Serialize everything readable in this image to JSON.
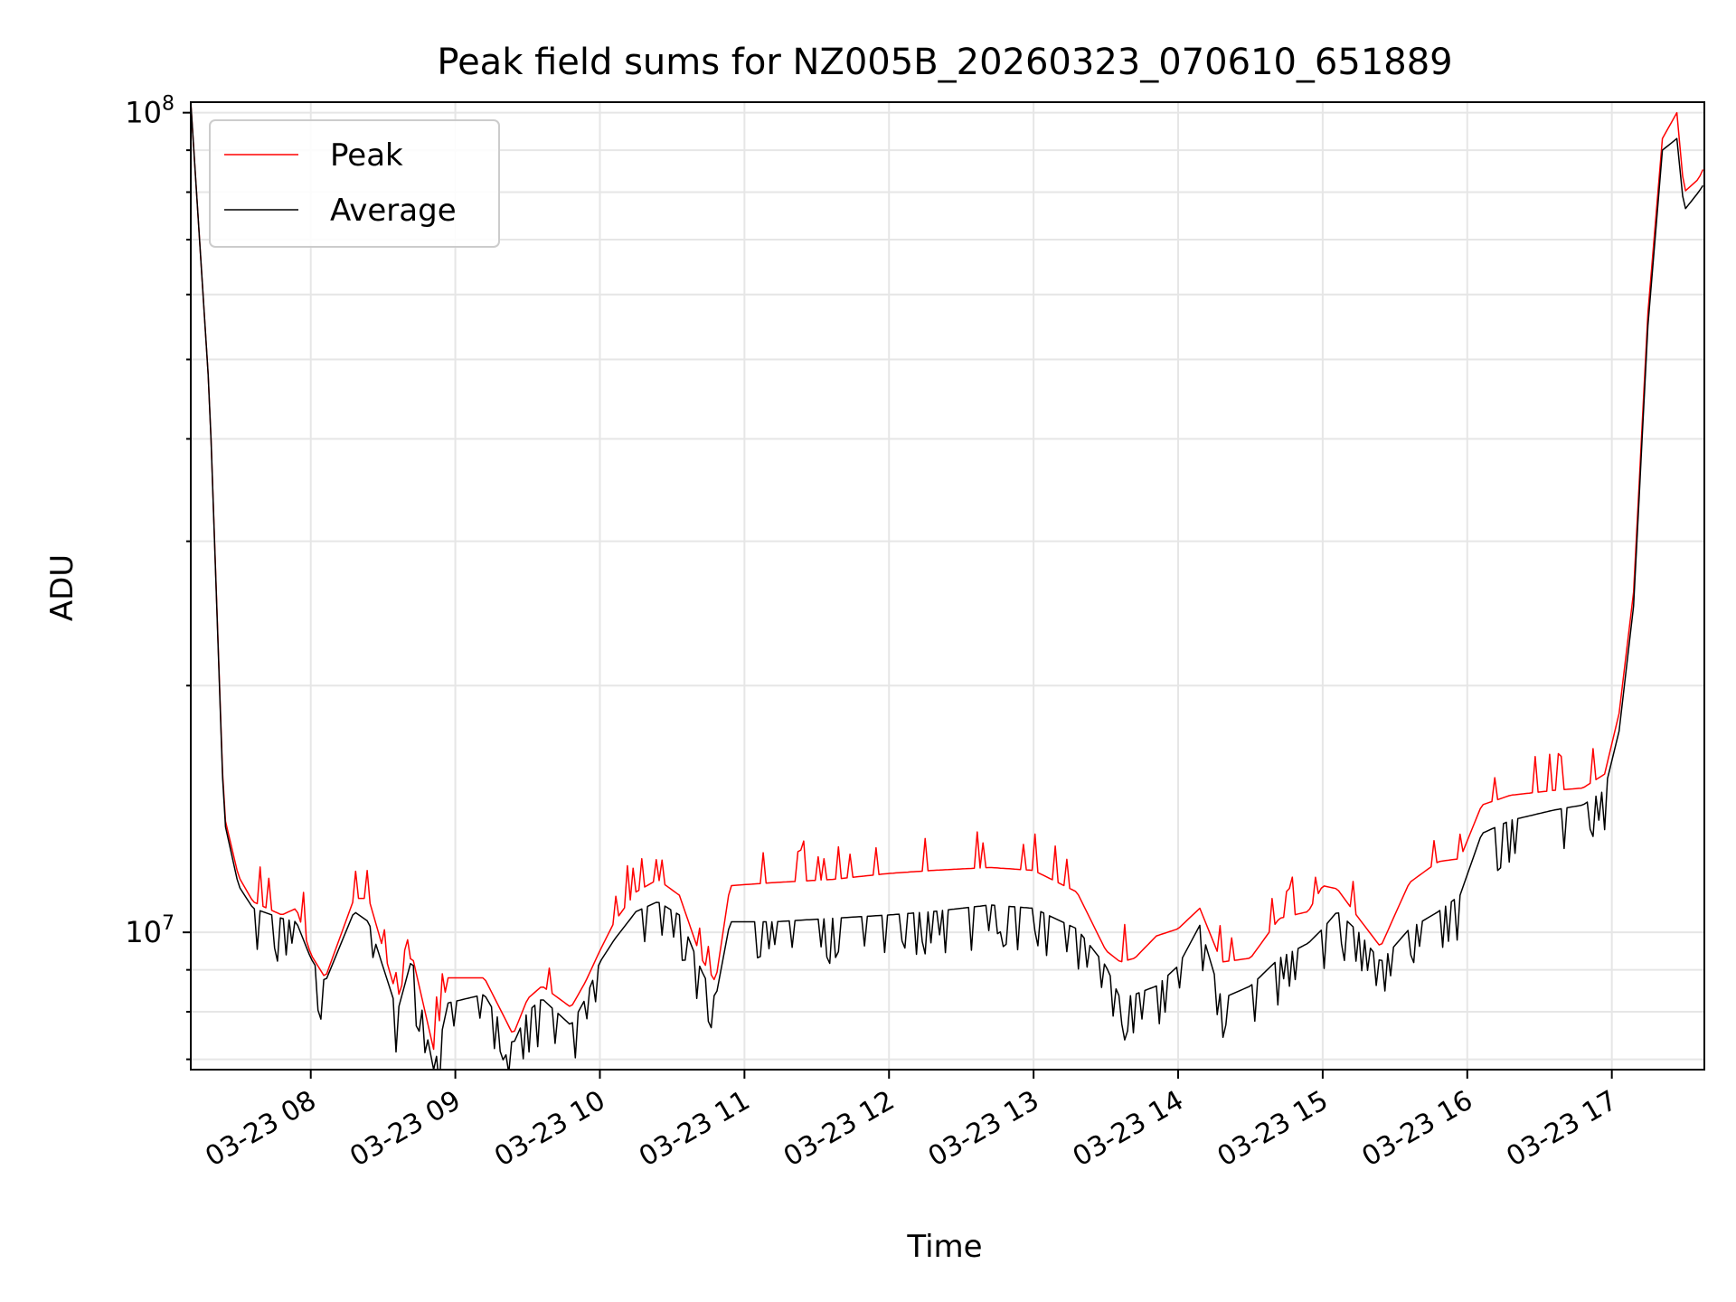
{
  "chart_data": {
    "type": "line",
    "title": "Peak field sums for NZ005B_20260323_070610_651889",
    "xlabel": "Time",
    "ylabel": "ADU",
    "yscale": "log",
    "ylim": [
      6800000,
      103000000
    ],
    "xlim_hours": [
      7.17,
      17.64
    ],
    "x_tick_hours": [
      8,
      9,
      10,
      11,
      12,
      13,
      14,
      15,
      16,
      17
    ],
    "x_tick_labels": [
      "03-23 08",
      "03-23 09",
      "03-23 10",
      "03-23 11",
      "03-23 12",
      "03-23 13",
      "03-23 14",
      "03-23 15",
      "03-23 16",
      "03-23 17"
    ],
    "y_tick_labels": [
      {
        "value": 10000000,
        "base": "10",
        "exp": "7"
      },
      {
        "value": 100000000,
        "base": "10",
        "exp": "8"
      }
    ],
    "grid": true,
    "legend_position": "upper-left",
    "series": [
      {
        "name": "Peak",
        "color": "#ff0000"
      },
      {
        "name": "Average",
        "color": "#000000"
      }
    ],
    "anchors": {
      "hours": [
        7.17,
        7.3,
        7.4,
        7.5,
        7.6,
        7.8,
        7.9,
        8.0,
        8.1,
        8.3,
        8.4,
        8.6,
        8.7,
        8.85,
        8.95,
        9.2,
        9.4,
        9.5,
        9.6,
        9.8,
        9.9,
        10.0,
        10.1,
        10.25,
        10.4,
        10.55,
        10.7,
        10.8,
        10.9,
        11.2,
        11.6,
        12.0,
        12.3,
        12.7,
        13.0,
        13.3,
        13.5,
        13.6,
        13.7,
        13.85,
        14.0,
        14.15,
        14.3,
        14.5,
        14.7,
        14.9,
        15.0,
        15.1,
        15.25,
        15.4,
        15.6,
        15.8,
        15.95,
        16.1,
        16.3,
        16.6,
        16.8,
        16.95,
        17.05,
        17.15,
        17.25,
        17.35,
        17.45,
        17.5,
        17.6,
        17.64
      ],
      "average": [
        103000000,
        45000000,
        13700000,
        11400000,
        10700000,
        10400000,
        10300000,
        9300000,
        8700000,
        10600000,
        10300000,
        8000000,
        9300000,
        6800000,
        8200000,
        8400000,
        7300000,
        8000000,
        8300000,
        7700000,
        8300000,
        9200000,
        9800000,
        10600000,
        10900000,
        10500000,
        9000000,
        8300000,
        10300000,
        10300000,
        10400000,
        10500000,
        10600000,
        10800000,
        10700000,
        10100000,
        9100000,
        8300000,
        8400000,
        8600000,
        9100000,
        10200000,
        8300000,
        8600000,
        9300000,
        9700000,
        10100000,
        10600000,
        10000000,
        9200000,
        10100000,
        10600000,
        11100000,
        13200000,
        13700000,
        14100000,
        14300000,
        14900000,
        17600000,
        25000000,
        55000000,
        90000000,
        93000000,
        76000000,
        80000000,
        82000000
      ],
      "peak": [
        103000000,
        45000000,
        13900000,
        11700000,
        10900000,
        10500000,
        10700000,
        9400000,
        8800000,
        11000000,
        11000000,
        8300000,
        9400000,
        7200000,
        8800000,
        8800000,
        7500000,
        8300000,
        8600000,
        8100000,
        8700000,
        9500000,
        10300000,
        11200000,
        11600000,
        11100000,
        9300000,
        8700000,
        11400000,
        11500000,
        11600000,
        11800000,
        11900000,
        12000000,
        11900000,
        11200000,
        9500000,
        9200000,
        9300000,
        9900000,
        10100000,
        10700000,
        9200000,
        9300000,
        10400000,
        10600000,
        11400000,
        11300000,
        10400000,
        9600000,
        11500000,
        12200000,
        12300000,
        14300000,
        14700000,
        14900000,
        15000000,
        15600000,
        18500000,
        26000000,
        57000000,
        93000000,
        100000000,
        80000000,
        83000000,
        86000000
      ]
    }
  }
}
